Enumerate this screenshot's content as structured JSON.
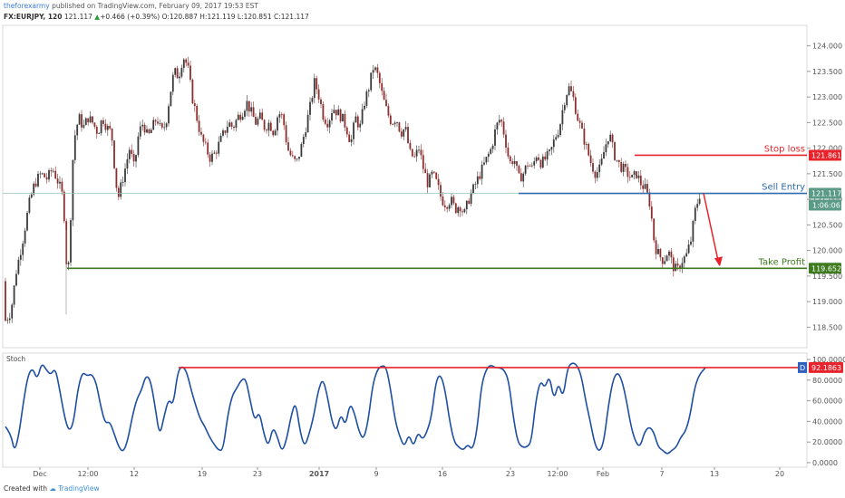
{
  "header": {
    "author": "theforexarmy",
    "published": "published on TradingView.com, February 09, 2017 19:53 EST",
    "symbol": "FX:EURJPY, 120",
    "last": "121.117",
    "change": "+0.466 (+0.39%)",
    "open": "O:120.887",
    "high": "H:121.119",
    "low": "L:120.851",
    "close": "C:121.117"
  },
  "footer": {
    "created_with": "Created with",
    "brand": "TradingView"
  },
  "colors": {
    "candle_up": "#3a3a3a",
    "candle_down": "#8b2f2f",
    "stop_loss": "#e8232b",
    "sell_entry": "#2f6bb0",
    "take_profit": "#3e7a1e",
    "stoch": "#1f4fa3",
    "current_price_badge": "#5a9a86"
  },
  "chart_data": [
    {
      "type": "candlestick",
      "title": "",
      "ylim": [
        118.1,
        124.4
      ],
      "x_ticks": [
        "Dec",
        "12:00",
        "12",
        "19",
        "23",
        "2017",
        "9",
        "16",
        "23",
        "12:00",
        "Feb",
        "7",
        "13",
        "20"
      ],
      "y_ticks": [
        "118.500",
        "119.000",
        "119.500",
        "120.000",
        "120.500",
        "121.000",
        "121.500",
        "122.000",
        "122.500",
        "123.000",
        "123.500",
        "124.000"
      ],
      "path": [
        [
          0,
          119.4
        ],
        [
          5,
          118.6
        ],
        [
          12,
          118.8
        ],
        [
          18,
          119.6
        ],
        [
          25,
          120.2
        ],
        [
          32,
          120.9
        ],
        [
          38,
          121.3
        ],
        [
          45,
          121.5
        ],
        [
          52,
          121.4
        ],
        [
          58,
          121.6
        ],
        [
          65,
          121.3
        ],
        [
          70,
          121.0
        ],
        [
          73,
          119.8
        ],
        [
          76,
          119.7
        ],
        [
          80,
          121.7
        ],
        [
          83,
          122.3
        ],
        [
          87,
          122.6
        ],
        [
          92,
          122.4
        ],
        [
          97,
          122.6
        ],
        [
          102,
          122.5
        ],
        [
          108,
          122.3
        ],
        [
          113,
          122.6
        ],
        [
          118,
          122.4
        ],
        [
          123,
          122.3
        ],
        [
          127,
          121.5
        ],
        [
          130,
          121.0
        ],
        [
          134,
          121.3
        ],
        [
          138,
          121.6
        ],
        [
          143,
          122.0
        ],
        [
          148,
          121.6
        ],
        [
          153,
          122.3
        ],
        [
          158,
          122.5
        ],
        [
          163,
          122.2
        ],
        [
          168,
          122.4
        ],
        [
          173,
          122.6
        ],
        [
          178,
          122.3
        ],
        [
          183,
          122.5
        ],
        [
          187,
          123.0
        ],
        [
          192,
          123.5
        ],
        [
          197,
          123.4
        ],
        [
          202,
          123.8
        ],
        [
          207,
          123.6
        ],
        [
          212,
          123.0
        ],
        [
          217,
          122.6
        ],
        [
          222,
          122.2
        ],
        [
          227,
          122.0
        ],
        [
          232,
          121.8
        ],
        [
          237,
          121.9
        ],
        [
          242,
          122.1
        ],
        [
          247,
          122.3
        ],
        [
          252,
          122.5
        ],
        [
          257,
          122.4
        ],
        [
          262,
          122.6
        ],
        [
          267,
          122.7
        ],
        [
          272,
          122.9
        ],
        [
          277,
          122.7
        ],
        [
          282,
          122.5
        ],
        [
          287,
          122.6
        ],
        [
          292,
          122.4
        ],
        [
          297,
          122.5
        ],
        [
          302,
          122.3
        ],
        [
          307,
          122.7
        ],
        [
          312,
          122.6
        ],
        [
          317,
          122.0
        ],
        [
          322,
          121.8
        ],
        [
          327,
          121.7
        ],
        [
          332,
          122.0
        ],
        [
          337,
          122.4
        ],
        [
          342,
          122.8
        ],
        [
          347,
          123.3
        ],
        [
          352,
          123.0
        ],
        [
          357,
          122.6
        ],
        [
          362,
          122.5
        ],
        [
          367,
          122.8
        ],
        [
          372,
          122.7
        ],
        [
          377,
          122.6
        ],
        [
          382,
          122.4
        ],
        [
          387,
          122.1
        ],
        [
          392,
          122.6
        ],
        [
          397,
          122.4
        ],
        [
          402,
          122.9
        ],
        [
          407,
          123.2
        ],
        [
          412,
          123.6
        ],
        [
          417,
          123.4
        ],
        [
          422,
          123.0
        ],
        [
          427,
          122.7
        ],
        [
          432,
          122.5
        ],
        [
          437,
          122.6
        ],
        [
          442,
          122.3
        ],
        [
          447,
          122.4
        ],
        [
          452,
          121.9
        ],
        [
          457,
          121.8
        ],
        [
          462,
          122.0
        ],
        [
          467,
          121.6
        ],
        [
          472,
          121.3
        ],
        [
          477,
          121.5
        ],
        [
          482,
          121.3
        ],
        [
          487,
          121.0
        ],
        [
          492,
          120.9
        ],
        [
          497,
          121.0
        ],
        [
          502,
          120.8
        ],
        [
          507,
          120.9
        ],
        [
          512,
          120.7
        ],
        [
          517,
          121.0
        ],
        [
          522,
          121.2
        ],
        [
          527,
          121.4
        ],
        [
          532,
          121.6
        ],
        [
          537,
          121.8
        ],
        [
          542,
          122.0
        ],
        [
          547,
          122.4
        ],
        [
          552,
          122.6
        ],
        [
          557,
          122.2
        ],
        [
          562,
          121.7
        ],
        [
          567,
          121.8
        ],
        [
          572,
          121.4
        ],
        [
          577,
          121.5
        ],
        [
          582,
          121.7
        ],
        [
          587,
          121.6
        ],
        [
          592,
          121.9
        ],
        [
          597,
          121.7
        ],
        [
          602,
          121.8
        ],
        [
          607,
          121.9
        ],
        [
          612,
          122.2
        ],
        [
          617,
          122.4
        ],
        [
          622,
          122.9
        ],
        [
          627,
          123.2
        ],
        [
          632,
          123.0
        ],
        [
          637,
          122.6
        ],
        [
          642,
          122.3
        ],
        [
          647,
          122.0
        ],
        [
          652,
          121.7
        ],
        [
          657,
          121.5
        ],
        [
          662,
          121.6
        ],
        [
          667,
          122.0
        ],
        [
          672,
          122.3
        ],
        [
          677,
          121.9
        ],
        [
          682,
          121.7
        ],
        [
          687,
          121.6
        ],
        [
          692,
          121.5
        ],
        [
          697,
          121.4
        ],
        [
          702,
          121.5
        ],
        [
          707,
          121.3
        ],
        [
          712,
          121.2
        ],
        [
          717,
          120.9
        ],
        [
          722,
          120.1
        ],
        [
          727,
          119.9
        ],
        [
          732,
          119.8
        ],
        [
          737,
          120.0
        ],
        [
          742,
          119.7
        ],
        [
          747,
          119.6
        ],
        [
          752,
          119.8
        ],
        [
          757,
          119.9
        ],
        [
          762,
          120.2
        ],
        [
          767,
          120.8
        ],
        [
          772,
          121.117
        ]
      ],
      "levels": [
        {
          "label": "Stop loss",
          "value": 121.861,
          "value_label": "121.861"
        },
        {
          "label": "Sell Entry",
          "value": 121.117,
          "value_label": "121.117"
        },
        {
          "label": "Take Profit",
          "value": 119.652,
          "value_label": "119.652"
        }
      ],
      "countdown": "1:06:06"
    },
    {
      "type": "line",
      "name": "Stoch",
      "ylim": [
        0,
        100
      ],
      "y_ticks": [
        "0.0000",
        "20.0000",
        "40.0000",
        "60.0000",
        "80.0000",
        "100.0000"
      ],
      "series_badge": "D",
      "current_label": "92.1863",
      "level": 92.1863,
      "points": [
        [
          0,
          35
        ],
        [
          6,
          28
        ],
        [
          10,
          10
        ],
        [
          15,
          28
        ],
        [
          20,
          60
        ],
        [
          25,
          85
        ],
        [
          30,
          92
        ],
        [
          35,
          80
        ],
        [
          40,
          97
        ],
        [
          45,
          90
        ],
        [
          50,
          85
        ],
        [
          55,
          92
        ],
        [
          60,
          70
        ],
        [
          65,
          45
        ],
        [
          70,
          30
        ],
        [
          75,
          38
        ],
        [
          80,
          72
        ],
        [
          85,
          88
        ],
        [
          90,
          84
        ],
        [
          95,
          86
        ],
        [
          100,
          78
        ],
        [
          105,
          55
        ],
        [
          110,
          38
        ],
        [
          115,
          40
        ],
        [
          120,
          28
        ],
        [
          125,
          15
        ],
        [
          130,
          10
        ],
        [
          135,
          22
        ],
        [
          140,
          45
        ],
        [
          145,
          62
        ],
        [
          150,
          70
        ],
        [
          155,
          85
        ],
        [
          160,
          80
        ],
        [
          165,
          55
        ],
        [
          170,
          25
        ],
        [
          175,
          45
        ],
        [
          180,
          62
        ],
        [
          185,
          55
        ],
        [
          190,
          88
        ],
        [
          195,
          94
        ],
        [
          200,
          88
        ],
        [
          205,
          70
        ],
        [
          210,
          55
        ],
        [
          215,
          42
        ],
        [
          220,
          35
        ],
        [
          225,
          25
        ],
        [
          230,
          18
        ],
        [
          235,
          12
        ],
        [
          240,
          12
        ],
        [
          245,
          45
        ],
        [
          250,
          65
        ],
        [
          255,
          72
        ],
        [
          260,
          80
        ],
        [
          265,
          82
        ],
        [
          270,
          60
        ],
        [
          275,
          40
        ],
        [
          280,
          50
        ],
        [
          285,
          28
        ],
        [
          290,
          15
        ],
        [
          295,
          35
        ],
        [
          300,
          25
        ],
        [
          305,
          10
        ],
        [
          310,
          22
        ],
        [
          315,
          45
        ],
        [
          320,
          60
        ],
        [
          325,
          30
        ],
        [
          330,
          15
        ],
        [
          335,
          28
        ],
        [
          340,
          45
        ],
        [
          345,
          70
        ],
        [
          350,
          82
        ],
        [
          355,
          65
        ],
        [
          360,
          40
        ],
        [
          365,
          30
        ],
        [
          370,
          48
        ],
        [
          375,
          35
        ],
        [
          380,
          58
        ],
        [
          385,
          48
        ],
        [
          390,
          30
        ],
        [
          395,
          22
        ],
        [
          400,
          40
        ],
        [
          405,
          75
        ],
        [
          410,
          90
        ],
        [
          415,
          94
        ],
        [
          420,
          93
        ],
        [
          425,
          70
        ],
        [
          430,
          40
        ],
        [
          435,
          25
        ],
        [
          440,
          15
        ],
        [
          445,
          28
        ],
        [
          450,
          15
        ],
        [
          455,
          30
        ],
        [
          460,
          22
        ],
        [
          465,
          30
        ],
        [
          470,
          45
        ],
        [
          475,
          80
        ],
        [
          480,
          86
        ],
        [
          485,
          70
        ],
        [
          490,
          40
        ],
        [
          495,
          20
        ],
        [
          500,
          15
        ],
        [
          505,
          12
        ],
        [
          510,
          18
        ],
        [
          515,
          12
        ],
        [
          520,
          30
        ],
        [
          525,
          75
        ],
        [
          530,
          90
        ],
        [
          535,
          95
        ],
        [
          540,
          92
        ],
        [
          545,
          92
        ],
        [
          550,
          90
        ],
        [
          555,
          80
        ],
        [
          560,
          45
        ],
        [
          565,
          20
        ],
        [
          570,
          15
        ],
        [
          575,
          15
        ],
        [
          580,
          20
        ],
        [
          585,
          60
        ],
        [
          590,
          80
        ],
        [
          595,
          72
        ],
        [
          600,
          85
        ],
        [
          605,
          60
        ],
        [
          610,
          78
        ],
        [
          615,
          62
        ],
        [
          620,
          92
        ],
        [
          625,
          97
        ],
        [
          630,
          95
        ],
        [
          635,
          85
        ],
        [
          640,
          60
        ],
        [
          645,
          40
        ],
        [
          650,
          18
        ],
        [
          655,
          10
        ],
        [
          660,
          20
        ],
        [
          665,
          55
        ],
        [
          670,
          80
        ],
        [
          675,
          88
        ],
        [
          680,
          80
        ],
        [
          685,
          60
        ],
        [
          690,
          35
        ],
        [
          695,
          20
        ],
        [
          700,
          15
        ],
        [
          705,
          30
        ],
        [
          710,
          35
        ],
        [
          715,
          30
        ],
        [
          720,
          15
        ],
        [
          725,
          12
        ],
        [
          730,
          8
        ],
        [
          735,
          12
        ],
        [
          740,
          15
        ],
        [
          745,
          25
        ],
        [
          750,
          30
        ],
        [
          755,
          45
        ],
        [
          760,
          72
        ],
        [
          765,
          85
        ],
        [
          772,
          92
        ]
      ]
    }
  ]
}
